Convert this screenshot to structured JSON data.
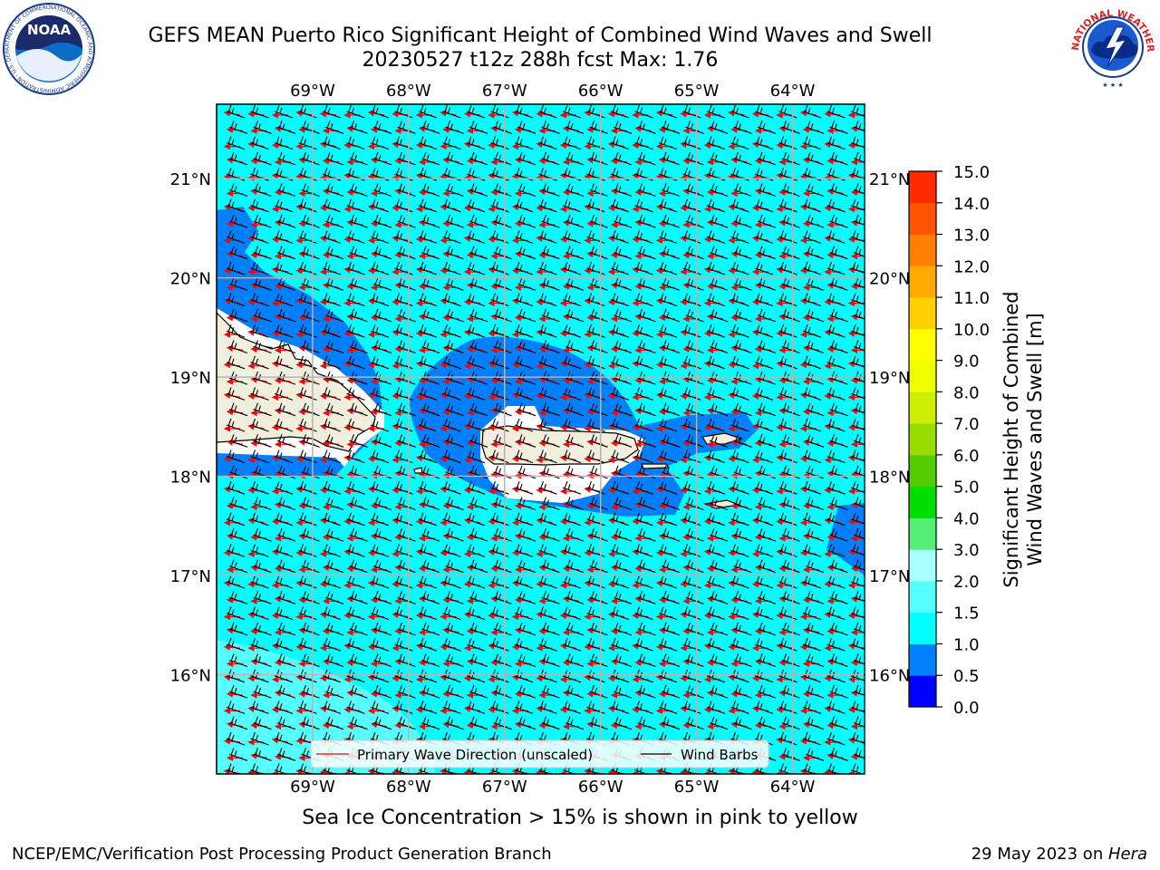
{
  "title_line1": "GEFS MEAN Puerto Rico Significant Height of Combined Wind Waves and Swell",
  "title_line2": "20230527 t12z 288h fcst   Max: 1.76",
  "logos": {
    "left": {
      "icon": "noaa-logo",
      "text": "NOAA",
      "ring_text": "NATIONAL OCEANIC AND ATMOSPHERIC ADMINISTRATION · U.S. DEPARTMENT OF COMMERCE"
    },
    "right": {
      "icon": "nws-logo",
      "ring_text": "NATIONAL WEATHER SERVICE"
    }
  },
  "map": {
    "lon_labels": [
      "69°W",
      "68°W",
      "67°W",
      "66°W",
      "65°W",
      "64°W"
    ],
    "lat_labels": [
      "21°N",
      "20°N",
      "19°N",
      "18°N",
      "17°N",
      "16°N"
    ],
    "lon_range": [
      -70,
      -63.25
    ],
    "lat_range": [
      15,
      21.75
    ],
    "colors": {
      "ocean_1_15": "#00ffff",
      "band_05_1": "#0080ff",
      "band_0_05": "#0000ff",
      "band_15_2": "#55ffff",
      "land": "#f0eedc",
      "wave_arrow": "#ff0000",
      "barb": "#000000",
      "grid": "#b4b4b4"
    }
  },
  "legend": {
    "wave_label": "Primary Wave Direction (unscaled)",
    "barb_label": "Wind Barbs"
  },
  "colorbar": {
    "label_line1": "Significant Height of Combined",
    "label_line2": "Wind Waves and Swell [m]",
    "ticks": [
      "0.0",
      "0.5",
      "1.0",
      "1.5",
      "2.0",
      "3.0",
      "4.0",
      "5.0",
      "6.0",
      "7.0",
      "8.0",
      "9.0",
      "10.0",
      "11.0",
      "12.0",
      "13.0",
      "14.0",
      "15.0"
    ],
    "colors": [
      "#0000ff",
      "#0080ff",
      "#00ffff",
      "#55ffff",
      "#aaffff",
      "#55ee77",
      "#00dd00",
      "#55cc00",
      "#99dd00",
      "#ccee00",
      "#eeff00",
      "#ffff00",
      "#ffd000",
      "#ffaa00",
      "#ff8000",
      "#ff5500",
      "#ff2a00",
      "#ff0000"
    ]
  },
  "ice_note": "Sea Ice Concentration > 15% is shown in pink to yellow",
  "footer_left": "NCEP/EMC/Verification Post Processing Product Generation Branch",
  "footer_right_prefix": "29 May 2023 on ",
  "footer_right_host": "Hera"
}
